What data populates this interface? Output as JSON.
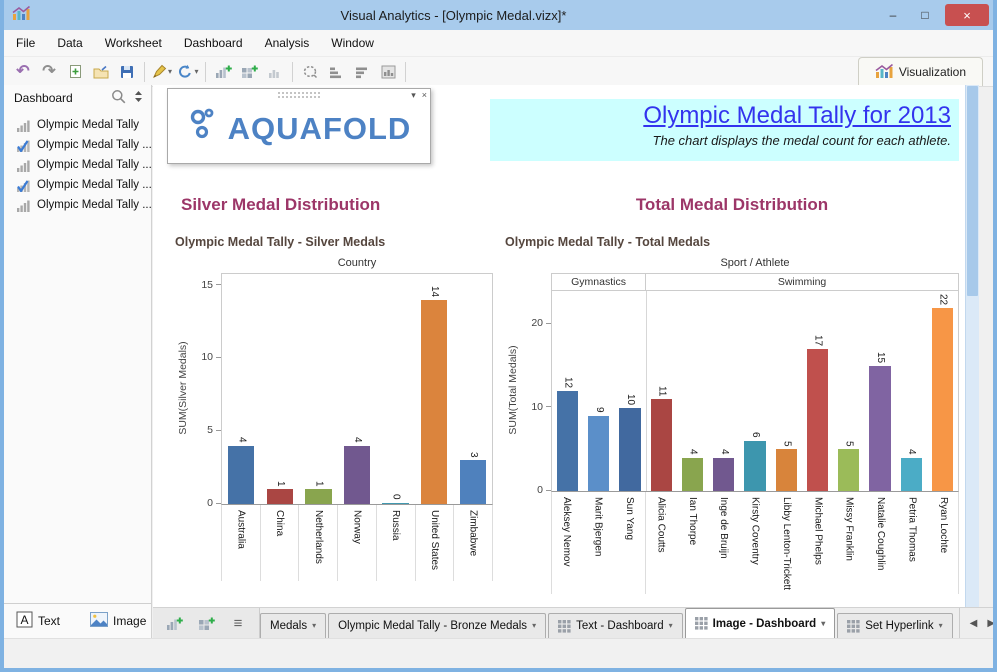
{
  "window": {
    "title": "Visual Analytics - [Olympic Medal.vizx]*",
    "minimize": "–",
    "maximize": "□",
    "close": "×"
  },
  "menu": {
    "items": [
      "File",
      "Data",
      "Worksheet",
      "Dashboard",
      "Analysis",
      "Window"
    ]
  },
  "toolbar": {
    "buttons": [
      {
        "icon": "undo"
      },
      {
        "icon": "redo"
      },
      {
        "icon": "new-file"
      },
      {
        "icon": "open-folder"
      },
      {
        "icon": "save"
      },
      {
        "separator": true
      },
      {
        "icon": "format-wizard",
        "dropdown": true
      },
      {
        "icon": "refresh",
        "dropdown": true
      },
      {
        "separator": true
      },
      {
        "icon": "new-worksheet"
      },
      {
        "icon": "new-dashboard"
      },
      {
        "icon": "duplicate-worksheet"
      },
      {
        "separator": true
      },
      {
        "icon": "clear-selection"
      },
      {
        "icon": "sort-ascending"
      },
      {
        "icon": "sort-descending"
      },
      {
        "icon": "show-totals"
      },
      {
        "separator": true
      }
    ],
    "visualization_tab": "Visualization"
  },
  "sidebar": {
    "header": "Dashboard",
    "items": [
      {
        "label": "Olympic Medal Tally",
        "checked": false
      },
      {
        "label": "Olympic Medal Tally ...",
        "checked": true
      },
      {
        "label": "Olympic Medal Tally ...",
        "checked": false
      },
      {
        "label": "Olympic Medal Tally ...",
        "checked": true
      },
      {
        "label": "Olympic Medal Tally ...",
        "checked": false
      }
    ],
    "footer": {
      "text_button": "Text",
      "image_button": "Image"
    }
  },
  "canvas": {
    "logo_text": "AQUAFOLD",
    "banner": {
      "title": "Olympic Medal Tally for 2013",
      "subtitle": "The chart displays the medal count for each athlete.",
      "background": "#CCFFFF",
      "title_color": "#3333EE"
    }
  },
  "chart_data": [
    {
      "type": "bar",
      "section_header": "Silver Medal Distribution",
      "title": "Olympic Medal Tally - Silver Medals",
      "top_axis_label": "Country",
      "ylabel": "SUM(Silver Medals)",
      "yticks": [
        0,
        5,
        10,
        15
      ],
      "ylim": [
        0,
        15.8
      ],
      "grid": "off",
      "legend": "none",
      "label_separators": "all",
      "categories": [
        "Australia",
        "China",
        "Netherlands",
        "Norway",
        "Russia",
        "United States",
        "Zimbabwe"
      ],
      "values": [
        4,
        1,
        1,
        4,
        0,
        14,
        3
      ],
      "colors": [
        "#4572A7",
        "#AA4643",
        "#89A54E",
        "#71588F",
        "#4198AF",
        "#DB843D",
        "#4F81BD"
      ]
    },
    {
      "type": "bar",
      "section_header": "Total Medal Distribution",
      "title": "Olympic Medal Tally - Total Medals",
      "top_axis_label": "Sport / Athlete",
      "groups": [
        {
          "label": "Gymnastics",
          "count": 3
        },
        {
          "label": "Swimming",
          "count": 10
        }
      ],
      "ylabel": "SUM(Total Medals)",
      "yticks": [
        0,
        10,
        20
      ],
      "ylim": [
        0,
        24
      ],
      "grid": "off",
      "legend": "none",
      "label_separators": "groups",
      "categories": [
        "Aleksey Nemov",
        "Marit Bjergen",
        "Sun Yang",
        "Alicia Coutts",
        "Ian Thorpe",
        "Inge de Bruijn",
        "Kirsty Coventry",
        "Libby Lenton-Trickett",
        "Michael Phelps",
        "Missy Franklin",
        "Natalie Coughlin",
        "Petria Thomas",
        "Ryan Lochte"
      ],
      "values": [
        12,
        9,
        10,
        11,
        4,
        4,
        6,
        5,
        17,
        5,
        15,
        4,
        22
      ],
      "colors": [
        "#4572A7",
        "#5B8FC9",
        "#41699F",
        "#AA4643",
        "#89A54E",
        "#71588F",
        "#3D96AE",
        "#D8843B",
        "#C0504D",
        "#9BBB59",
        "#8064A2",
        "#4BACC6",
        "#F79646"
      ]
    }
  ],
  "tabbar": {
    "tabs": [
      {
        "label": "Medals",
        "icon": "none",
        "active": false
      },
      {
        "label": "Olympic Medal Tally - Bronze Medals",
        "icon": "none",
        "active": false
      },
      {
        "label": "Text - Dashboard",
        "icon": "dashboard-grid",
        "active": false
      },
      {
        "label": "Image - Dashboard",
        "icon": "dashboard-grid",
        "active": true
      },
      {
        "label": "Set Hyperlink",
        "icon": "dashboard-grid",
        "active": false
      }
    ]
  }
}
